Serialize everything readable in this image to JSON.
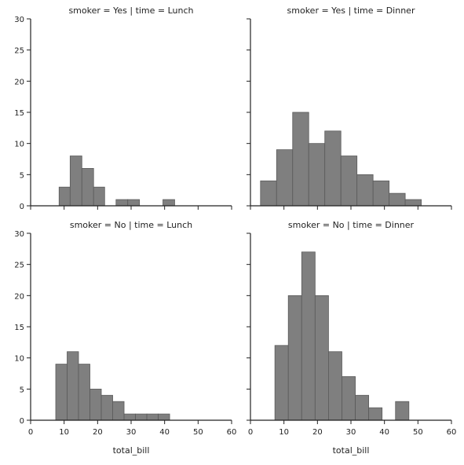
{
  "chart_data": [
    {
      "type": "bar",
      "title": "smoker = Yes | time = Lunch",
      "xlabel": "",
      "ylabel": "",
      "xlim": [
        0,
        60
      ],
      "ylim": [
        0,
        30
      ],
      "xticks": [
        "0",
        "10",
        "20",
        "30",
        "40",
        "50",
        "60"
      ],
      "yticks": [
        "0",
        "5",
        "10",
        "15",
        "20",
        "25",
        "30"
      ],
      "show_x_tick_labels": false,
      "show_y_tick_labels": true,
      "bins": [
        {
          "x0": 8.5,
          "x1": 11.8,
          "value": 3
        },
        {
          "x0": 11.8,
          "x1": 15.3,
          "value": 8
        },
        {
          "x0": 15.3,
          "x1": 18.8,
          "value": 6
        },
        {
          "x0": 18.8,
          "x1": 22.1,
          "value": 3
        },
        {
          "x0": 25.5,
          "x1": 29.0,
          "value": 1
        },
        {
          "x0": 29.0,
          "x1": 32.5,
          "value": 1
        },
        {
          "x0": 39.5,
          "x1": 43.0,
          "value": 1
        }
      ],
      "grid": false,
      "color": "#7f7f7f"
    },
    {
      "type": "bar",
      "title": "smoker = Yes | time = Dinner",
      "xlabel": "",
      "ylabel": "",
      "xlim": [
        0,
        60
      ],
      "ylim": [
        0,
        30
      ],
      "xticks": [
        "0",
        "10",
        "20",
        "30",
        "40",
        "50",
        "60"
      ],
      "yticks": [
        "0",
        "5",
        "10",
        "15",
        "20",
        "25",
        "30"
      ],
      "show_x_tick_labels": false,
      "show_y_tick_labels": false,
      "bins": [
        {
          "x0": 3.0,
          "x1": 7.8,
          "value": 4
        },
        {
          "x0": 7.8,
          "x1": 12.6,
          "value": 9
        },
        {
          "x0": 12.6,
          "x1": 17.4,
          "value": 15
        },
        {
          "x0": 17.4,
          "x1": 22.2,
          "value": 10
        },
        {
          "x0": 22.2,
          "x1": 27.0,
          "value": 12
        },
        {
          "x0": 27.0,
          "x1": 31.8,
          "value": 8
        },
        {
          "x0": 31.8,
          "x1": 36.6,
          "value": 5
        },
        {
          "x0": 36.6,
          "x1": 41.4,
          "value": 4
        },
        {
          "x0": 41.4,
          "x1": 46.2,
          "value": 2
        },
        {
          "x0": 46.2,
          "x1": 51.0,
          "value": 1
        }
      ],
      "grid": false,
      "color": "#7f7f7f"
    },
    {
      "type": "bar",
      "title": "smoker = No | time = Lunch",
      "xlabel": "total_bill",
      "ylabel": "",
      "xlim": [
        0,
        60
      ],
      "ylim": [
        0,
        30
      ],
      "xticks": [
        "0",
        "10",
        "20",
        "30",
        "40",
        "50",
        "60"
      ],
      "yticks": [
        "0",
        "5",
        "10",
        "15",
        "20",
        "25",
        "30"
      ],
      "show_x_tick_labels": true,
      "show_y_tick_labels": true,
      "bins": [
        {
          "x0": 7.5,
          "x1": 10.9,
          "value": 9
        },
        {
          "x0": 10.9,
          "x1": 14.3,
          "value": 11
        },
        {
          "x0": 14.3,
          "x1": 17.7,
          "value": 9
        },
        {
          "x0": 17.7,
          "x1": 21.1,
          "value": 5
        },
        {
          "x0": 21.1,
          "x1": 24.5,
          "value": 4
        },
        {
          "x0": 24.5,
          "x1": 27.9,
          "value": 3
        },
        {
          "x0": 27.9,
          "x1": 31.3,
          "value": 1
        },
        {
          "x0": 31.3,
          "x1": 34.7,
          "value": 1
        },
        {
          "x0": 34.7,
          "x1": 38.1,
          "value": 1
        },
        {
          "x0": 38.1,
          "x1": 41.5,
          "value": 1
        }
      ],
      "grid": false,
      "color": "#7f7f7f"
    },
    {
      "type": "bar",
      "title": "smoker = No | time = Dinner",
      "xlabel": "total_bill",
      "ylabel": "",
      "xlim": [
        0,
        60
      ],
      "ylim": [
        0,
        30
      ],
      "xticks": [
        "0",
        "10",
        "20",
        "30",
        "40",
        "50",
        "60"
      ],
      "yticks": [
        "0",
        "5",
        "10",
        "15",
        "20",
        "25",
        "30"
      ],
      "show_x_tick_labels": true,
      "show_y_tick_labels": false,
      "bins": [
        {
          "x0": 7.3,
          "x1": 11.3,
          "value": 12
        },
        {
          "x0": 11.3,
          "x1": 15.3,
          "value": 20
        },
        {
          "x0": 15.3,
          "x1": 19.3,
          "value": 27
        },
        {
          "x0": 19.3,
          "x1": 23.3,
          "value": 20
        },
        {
          "x0": 23.3,
          "x1": 27.3,
          "value": 11
        },
        {
          "x0": 27.3,
          "x1": 31.3,
          "value": 7
        },
        {
          "x0": 31.3,
          "x1": 35.3,
          "value": 4
        },
        {
          "x0": 35.3,
          "x1": 39.3,
          "value": 2
        },
        {
          "x0": 43.3,
          "x1": 47.3,
          "value": 3
        }
      ],
      "grid": false,
      "color": "#7f7f7f"
    }
  ]
}
